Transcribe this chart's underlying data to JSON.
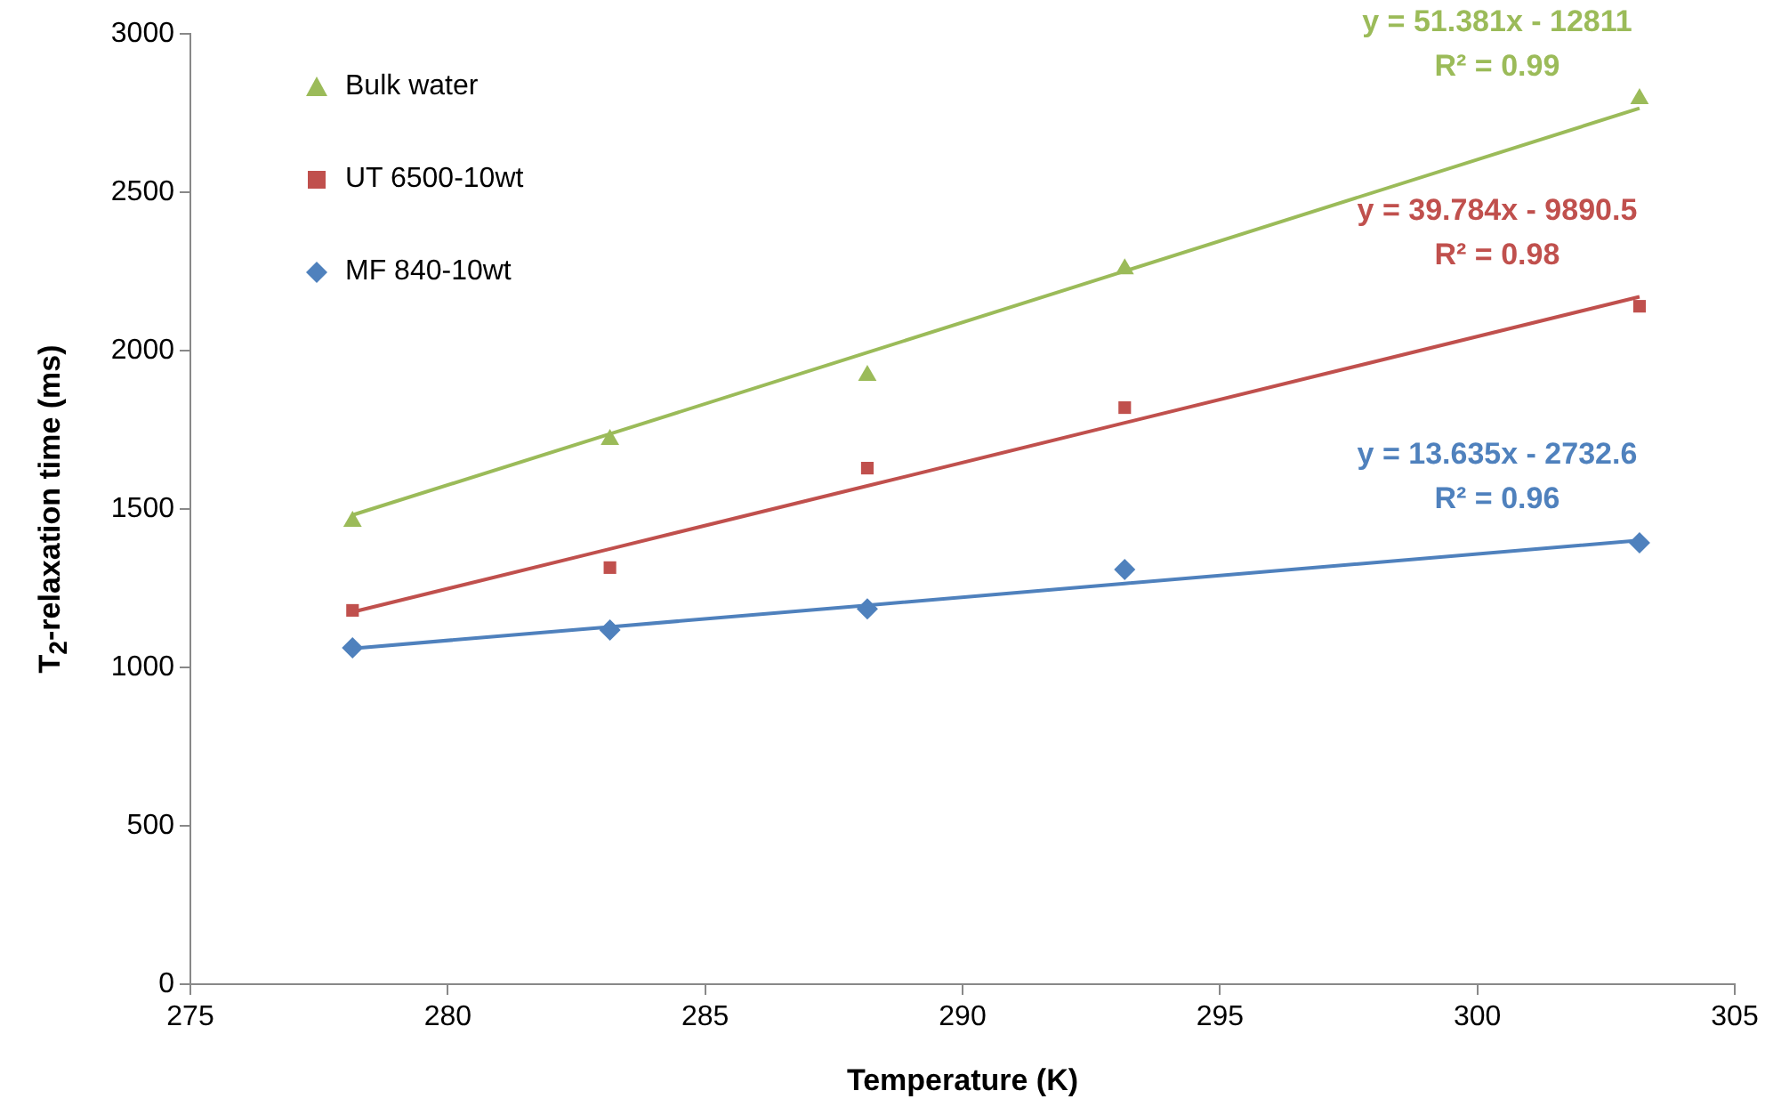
{
  "chart_data": {
    "type": "scatter",
    "xlabel": "Temperature (K)",
    "ylabel": "T$_{2}$-relaxation time (ms)",
    "x": [
      278.15,
      283.15,
      288.15,
      293.15,
      303.15
    ],
    "xlim": [
      275,
      305
    ],
    "xticks": [
      275,
      280,
      285,
      290,
      295,
      300,
      305
    ],
    "ylim": [
      0,
      3000
    ],
    "yticks": [
      0,
      500,
      1000,
      1500,
      2000,
      2500,
      3000
    ],
    "grid": false,
    "legend": "top left",
    "series": [
      {
        "name": "Bulk water",
        "color": "#9bbb59",
        "marker": "triangle",
        "values": [
          1461,
          1719,
          1921,
          2258,
          2795
        ]
      },
      {
        "name": "UT 6500-10wt",
        "color": "#c0504d",
        "marker": "square",
        "values": [
          1180,
          1315,
          1629,
          1820,
          2140
        ]
      },
      {
        "name": "MF 840-10wt",
        "color": "#4f81bd",
        "marker": "diamond",
        "values": [
          1062,
          1118,
          1185,
          1309,
          1393
        ]
      },
      {
        "type": "line",
        "color": "#9bbb59",
        "marker": "none",
        "values": [
          1481,
          1737,
          1994,
          2251,
          2765
        ]
      },
      {
        "type": "line",
        "color": "#c0504d",
        "marker": "none",
        "values": [
          1175,
          1374,
          1573,
          1772,
          2170
        ]
      },
      {
        "type": "line",
        "color": "#4f81bd",
        "marker": "none",
        "values": [
          1060,
          1128,
          1196,
          1265,
          1401
        ]
      }
    ],
    "annotations": [
      "y = 51.381x - 12811",
      "R² = 0.99",
      "y = 39.784x - 9890.5",
      "R² = 0.98",
      "y = 13.635x - 2732.6",
      "R² = 0.96"
    ]
  }
}
